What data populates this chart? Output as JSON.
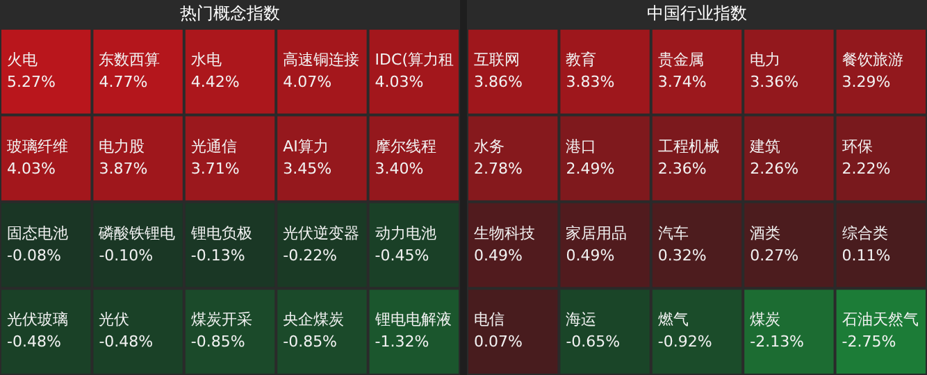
{
  "chart_data": [
    {
      "type": "other",
      "title": "热门概念指数",
      "categories": [
        "火电",
        "东数西算",
        "水电",
        "高速铜连接",
        "IDC(算力租",
        "玻璃纤维",
        "电力股",
        "光通信",
        "AI算力",
        "摩尔线程",
        "固态电池",
        "磷酸铁锂电",
        "锂电负极",
        "光伏逆变器",
        "动力电池",
        "光伏玻璃",
        "光伏",
        "煤炭开采",
        "央企煤炭",
        "锂电电解液"
      ],
      "values": [
        5.27,
        4.77,
        4.42,
        4.07,
        4.03,
        4.03,
        3.87,
        3.71,
        3.45,
        3.4,
        -0.08,
        -0.1,
        -0.13,
        -0.22,
        -0.45,
        -0.48,
        -0.48,
        -0.85,
        -0.85,
        -1.32
      ],
      "value_labels": [
        "5.27%",
        "4.77%",
        "4.42%",
        "4.07%",
        "4.03%",
        "4.03%",
        "3.87%",
        "3.71%",
        "3.45%",
        "3.40%",
        "-0.08%",
        "-0.10%",
        "-0.13%",
        "-0.22%",
        "-0.45%",
        "-0.48%",
        "-0.48%",
        "-0.85%",
        "-0.85%",
        "-1.32%"
      ]
    },
    {
      "type": "other",
      "title": "中国行业指数",
      "categories": [
        "互联网",
        "教育",
        "贵金属",
        "电力",
        "餐饮旅游",
        "水务",
        "港口",
        "工程机械",
        "建筑",
        "环保",
        "生物科技",
        "家居用品",
        "汽车",
        "酒类",
        "综合类",
        "电信",
        "海运",
        "燃气",
        "煤炭",
        "石油天然气"
      ],
      "values": [
        3.86,
        3.83,
        3.74,
        3.36,
        3.29,
        2.78,
        2.49,
        2.36,
        2.26,
        2.22,
        0.49,
        0.49,
        0.32,
        0.27,
        0.11,
        0.07,
        -0.65,
        -0.92,
        -2.13,
        -2.75
      ],
      "value_labels": [
        "3.86%",
        "3.83%",
        "3.74%",
        "3.36%",
        "3.29%",
        "2.78%",
        "2.49%",
        "2.36%",
        "2.26%",
        "2.22%",
        "0.49%",
        "0.49%",
        "0.32%",
        "0.27%",
        "0.11%",
        "0.07%",
        "-0.65%",
        "-0.92%",
        "-2.13%",
        "-2.75%"
      ]
    }
  ]
}
